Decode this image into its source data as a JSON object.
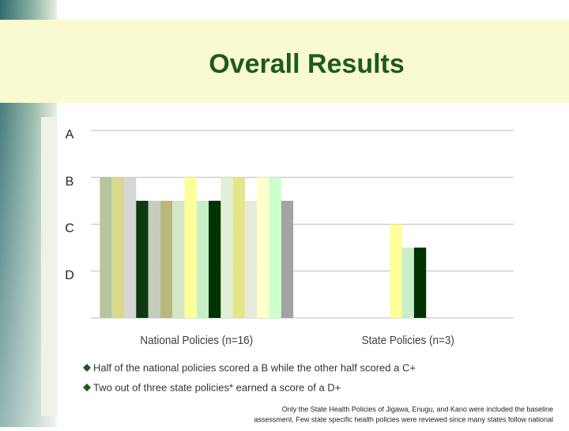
{
  "title": "Overall Results",
  "chart_data": {
    "type": "bar",
    "categories": [
      "National Policies (n=16)",
      "State Policies (n=3)"
    ],
    "values": [
      [
        3,
        3,
        3,
        2.5,
        2.5,
        2.5,
        2.5,
        3,
        2.5,
        2.5,
        3,
        3,
        2.5,
        3,
        3,
        2.5
      ],
      [
        2,
        1.5,
        1.5
      ]
    ],
    "colors": [
      [
        "#b8c49e",
        "#d8d98c",
        "#d6d6d6",
        "#0d3a10",
        "#c6cbbd",
        "#b8b87c",
        "#d5e5c5",
        "#ffff99",
        "#c7efc7",
        "#003300",
        "#e2efd6",
        "#e5e58a",
        "#e5ecd9",
        "#ffffcc",
        "#ccffcc",
        "#a3a3a3"
      ],
      [
        "#ffff99",
        "#c8efc8",
        "#003300"
      ]
    ],
    "ylim": [
      0,
      4
    ],
    "yticks": [
      {
        "value": 1,
        "label": "D"
      },
      {
        "value": 2,
        "label": "C"
      },
      {
        "value": 3,
        "label": "B"
      },
      {
        "value": 4,
        "label": "A"
      }
    ],
    "grid": true
  },
  "bullets": [
    "Half of the national policies scored a B while the other half scored a C+",
    "Two out of three state policies* earned a score of a D+"
  ],
  "footnote": [
    "Only the State Health Policies of Jigawa, Enugu, and Kano were included the baseline",
    "assessment.  Few state specific health policies were reviewed since many states follow national"
  ]
}
